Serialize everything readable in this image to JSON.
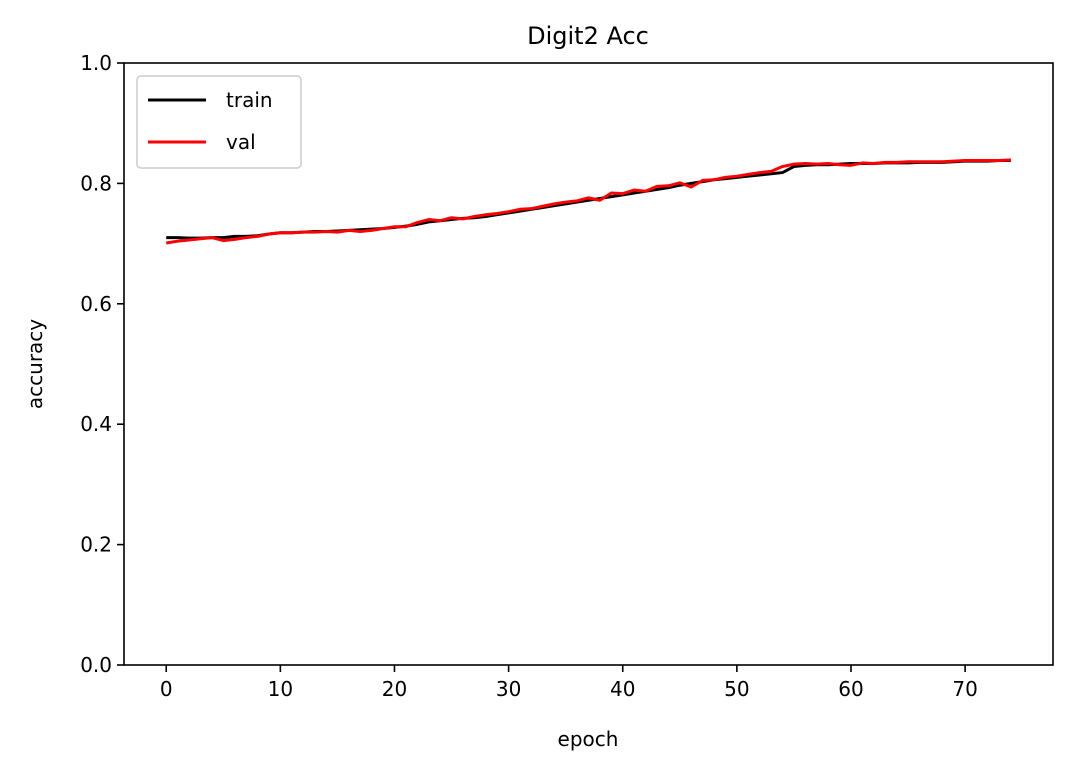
{
  "chart_data": {
    "type": "line",
    "title": "Digit2 Acc",
    "xlabel": "epoch",
    "ylabel": "accuracy",
    "xlim": [
      -3.7,
      77.7
    ],
    "ylim": [
      0.0,
      1.0
    ],
    "xticks": [
      0,
      10,
      20,
      30,
      40,
      50,
      60,
      70
    ],
    "yticks": [
      0.0,
      0.2,
      0.4,
      0.6,
      0.8,
      1.0
    ],
    "xtick_labels": [
      "0",
      "10",
      "20",
      "30",
      "40",
      "50",
      "60",
      "70"
    ],
    "ytick_labels": [
      "0.0",
      "0.2",
      "0.4",
      "0.6",
      "0.8",
      "1.0"
    ],
    "grid": false,
    "legend_position": "upper-left",
    "series": [
      {
        "name": "train",
        "color": "#000000",
        "x": [
          0,
          1,
          2,
          3,
          4,
          5,
          6,
          7,
          8,
          9,
          10,
          11,
          12,
          13,
          14,
          15,
          16,
          17,
          18,
          19,
          20,
          21,
          22,
          23,
          24,
          25,
          26,
          27,
          28,
          29,
          30,
          31,
          32,
          33,
          34,
          35,
          36,
          37,
          38,
          39,
          40,
          41,
          42,
          43,
          44,
          45,
          46,
          47,
          48,
          49,
          50,
          51,
          52,
          53,
          54,
          55,
          56,
          57,
          58,
          59,
          60,
          61,
          62,
          63,
          64,
          65,
          66,
          67,
          68,
          69,
          70,
          71,
          72,
          73,
          74
        ],
        "values": [
          0.71,
          0.71,
          0.709,
          0.709,
          0.71,
          0.71,
          0.712,
          0.712,
          0.713,
          0.716,
          0.718,
          0.718,
          0.719,
          0.72,
          0.72,
          0.721,
          0.722,
          0.723,
          0.724,
          0.725,
          0.727,
          0.729,
          0.732,
          0.736,
          0.738,
          0.74,
          0.742,
          0.743,
          0.745,
          0.748,
          0.751,
          0.754,
          0.757,
          0.76,
          0.763,
          0.766,
          0.769,
          0.772,
          0.775,
          0.778,
          0.781,
          0.784,
          0.787,
          0.79,
          0.793,
          0.797,
          0.8,
          0.803,
          0.806,
          0.808,
          0.81,
          0.812,
          0.814,
          0.816,
          0.818,
          0.828,
          0.83,
          0.831,
          0.831,
          0.832,
          0.833,
          0.833,
          0.833,
          0.834,
          0.834,
          0.834,
          0.835,
          0.835,
          0.835,
          0.836,
          0.837,
          0.837,
          0.837,
          0.838,
          0.838
        ]
      },
      {
        "name": "val",
        "color": "#ff0000",
        "x": [
          0,
          1,
          2,
          3,
          4,
          5,
          6,
          7,
          8,
          9,
          10,
          11,
          12,
          13,
          14,
          15,
          16,
          17,
          18,
          19,
          20,
          21,
          22,
          23,
          24,
          25,
          26,
          27,
          28,
          29,
          30,
          31,
          32,
          33,
          34,
          35,
          36,
          37,
          38,
          39,
          40,
          41,
          42,
          43,
          44,
          45,
          46,
          47,
          48,
          49,
          50,
          51,
          52,
          53,
          54,
          55,
          56,
          57,
          58,
          59,
          60,
          61,
          62,
          63,
          64,
          65,
          66,
          67,
          68,
          69,
          70,
          71,
          72,
          73,
          74
        ],
        "values": [
          0.701,
          0.704,
          0.706,
          0.708,
          0.71,
          0.705,
          0.707,
          0.71,
          0.712,
          0.716,
          0.718,
          0.718,
          0.719,
          0.719,
          0.72,
          0.719,
          0.722,
          0.72,
          0.722,
          0.725,
          0.728,
          0.728,
          0.735,
          0.74,
          0.738,
          0.743,
          0.741,
          0.745,
          0.748,
          0.75,
          0.753,
          0.757,
          0.758,
          0.762,
          0.766,
          0.769,
          0.771,
          0.776,
          0.772,
          0.784,
          0.783,
          0.789,
          0.787,
          0.795,
          0.796,
          0.801,
          0.794,
          0.805,
          0.806,
          0.81,
          0.812,
          0.815,
          0.818,
          0.82,
          0.828,
          0.832,
          0.833,
          0.832,
          0.833,
          0.831,
          0.83,
          0.834,
          0.833,
          0.835,
          0.835,
          0.836,
          0.836,
          0.836,
          0.836,
          0.837,
          0.838,
          0.838,
          0.838,
          0.838,
          0.839
        ]
      }
    ]
  }
}
